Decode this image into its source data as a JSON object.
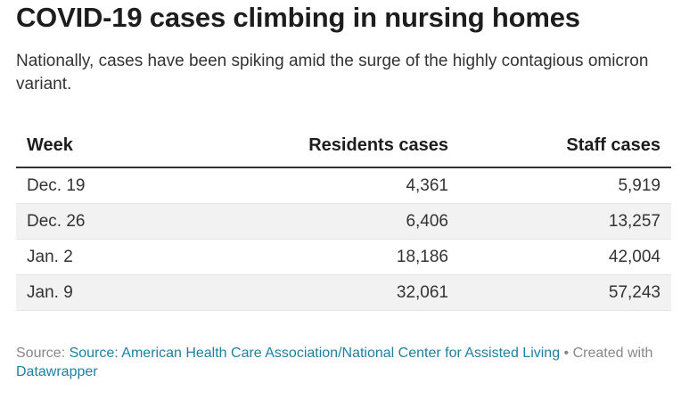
{
  "header": {
    "title": "COVID-19 cases climbing in nursing homes",
    "subtitle": "Nationally, cases have been spiking amid the surge of the highly contagious omicron variant."
  },
  "chart_data": {
    "type": "table",
    "columns": [
      "Week",
      "Residents cases",
      "Staff cases"
    ],
    "rows": [
      [
        "Dec. 19",
        "4,361",
        "5,919"
      ],
      [
        "Dec. 26",
        "6,406",
        "13,257"
      ],
      [
        "Jan. 2",
        "18,186",
        "42,004"
      ],
      [
        "Jan. 9",
        "32,061",
        "57,243"
      ]
    ]
  },
  "footer": {
    "source_prefix": "Source: ",
    "source_link": "Source: American Health Care Association/National Center for Assisted Living",
    "separator": " • Created with ",
    "datawrapper_link": "Datawrapper"
  },
  "colors": {
    "text": "#1d1d1d",
    "muted": "#888888",
    "link": "#1d81a2",
    "row_shade": "#f2f2f2"
  }
}
